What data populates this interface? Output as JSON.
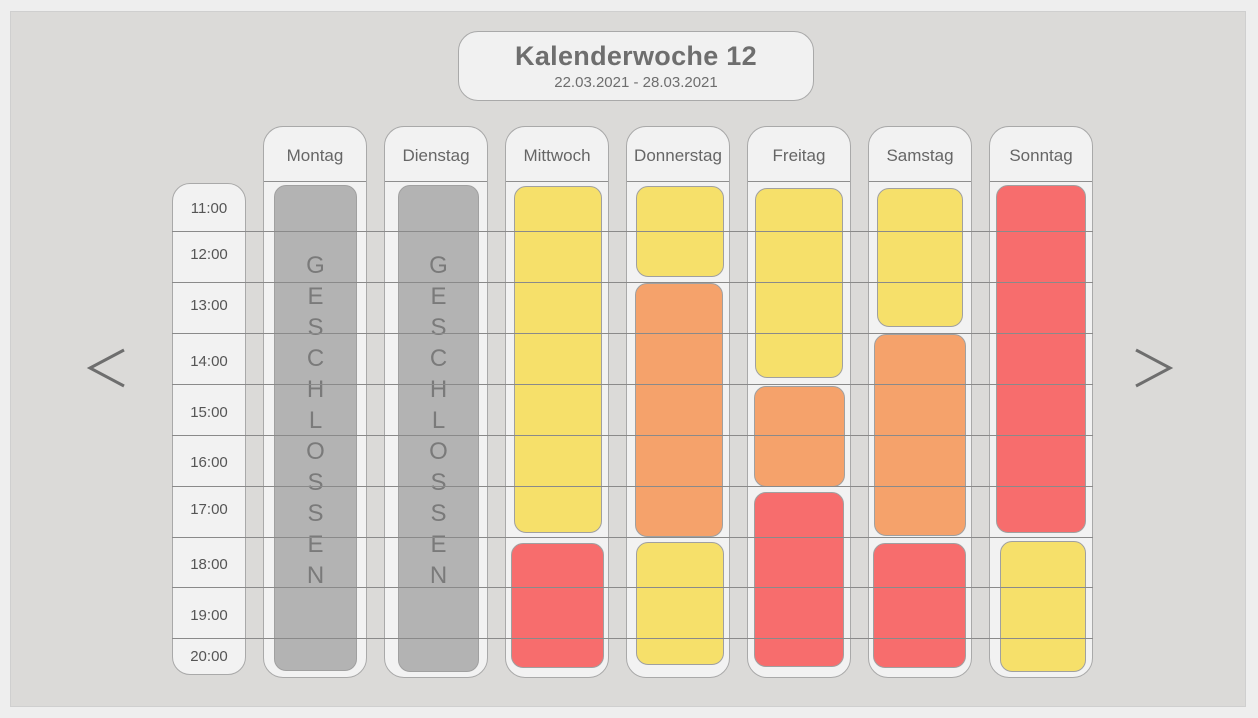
{
  "header": {
    "title": "Kalenderwoche 12",
    "date_range": "22.03.2021 - 28.03.2021"
  },
  "navigation": {
    "prev_icon": "chevron-left-icon",
    "next_icon": "chevron-right-icon"
  },
  "status_colors": {
    "low": "#f6e06a",
    "medium": "#f5a26b",
    "high": "#f76d6d",
    "closed": "#b3b3b3"
  },
  "times": [
    "11:00",
    "12:00",
    "13:00",
    "14:00",
    "15:00",
    "16:00",
    "17:00",
    "18:00",
    "19:00",
    "20:00"
  ],
  "days": [
    {
      "label": "Montag",
      "closed_text": "GESCHLOSSEN"
    },
    {
      "label": "Dienstag",
      "closed_text": "GESCHLOSSEN"
    },
    {
      "label": "Mittwoch"
    },
    {
      "label": "Donnerstag"
    },
    {
      "label": "Freitag"
    },
    {
      "label": "Samstag"
    },
    {
      "label": "Sonntag"
    }
  ]
}
